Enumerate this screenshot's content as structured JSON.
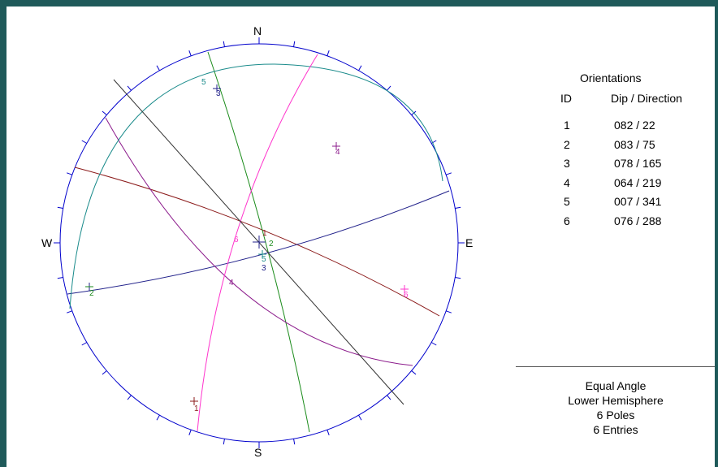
{
  "compass": {
    "north": "N",
    "east": "E",
    "south": "S",
    "west": "W"
  },
  "orientations": {
    "title": "Orientations",
    "id_header": "ID",
    "dd_header": "Dip / Direction",
    "rows": [
      {
        "id": "1",
        "dip_direction": "082  /  22"
      },
      {
        "id": "2",
        "dip_direction": "083  /  75"
      },
      {
        "id": "3",
        "dip_direction": "078  /  165"
      },
      {
        "id": "4",
        "dip_direction": "064  /  219"
      },
      {
        "id": "5",
        "dip_direction": "007  /  341"
      },
      {
        "id": "6",
        "dip_direction": "076  /  288"
      }
    ]
  },
  "summary": {
    "projection": "Equal Angle",
    "hemisphere": "Lower Hemisphere",
    "poles": "6 Poles",
    "entries": "6 Entries"
  },
  "plot_marks": {
    "pole_labels": [
      "1",
      "2",
      "3",
      "4",
      "5",
      "6"
    ],
    "plane_labels": [
      "1",
      "2",
      "3",
      "4",
      "5",
      "6"
    ]
  },
  "colors": {
    "frame": "#1f5a5a",
    "net_circle": "#0000cc",
    "set1": "#8b1a1a",
    "set2": "#22228b",
    "set3": "#1a8b1a",
    "set4": "#8b1a8b",
    "set5": "#1a8b8b",
    "set6": "#ff33cc",
    "black_line": "#333333"
  }
}
